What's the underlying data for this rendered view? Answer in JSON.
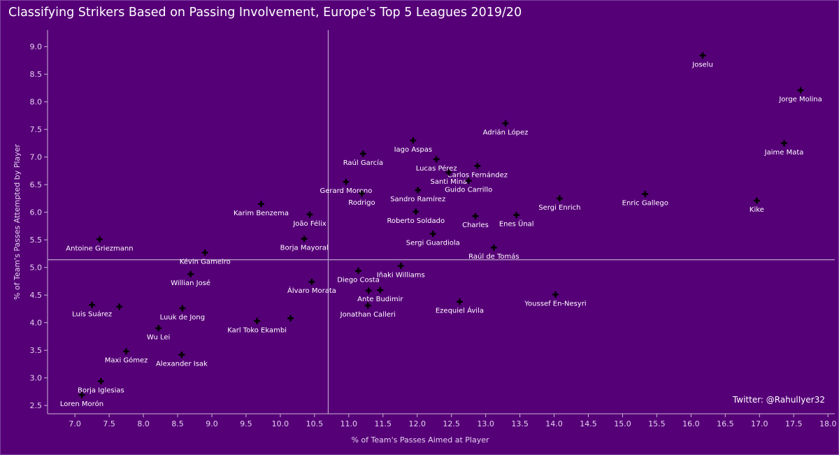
{
  "title": "Classifying Strikers Based on Passing Involvement, Europe's Top 5 Leagues 2019/20",
  "credit": "Twitter: @RahulIyer32",
  "colors": {
    "background": "#560078",
    "marker": "#000000",
    "reference_line": "#b9a2c8",
    "text": "#ffffff"
  },
  "chart_data": {
    "type": "scatter",
    "xlabel": "% of Team's Passes Aimed at Player",
    "ylabel": "% of Team's Passes Attempted by Player",
    "xlim": [
      6.6,
      18.1
    ],
    "ylim": [
      2.35,
      9.3
    ],
    "x_ticks": [
      "7.0",
      "7.5",
      "8.0",
      "8.5",
      "9.0",
      "9.5",
      "10.0",
      "10.5",
      "11.0",
      "11.5",
      "12.0",
      "12.5",
      "13.0",
      "13.5",
      "14.0",
      "14.5",
      "15.0",
      "15.5",
      "16.0",
      "16.5",
      "17.0",
      "17.5",
      "18.0"
    ],
    "y_ticks": [
      "2.5",
      "3.0",
      "3.5",
      "4.0",
      "4.5",
      "5.0",
      "5.5",
      "6.0",
      "6.5",
      "7.0",
      "7.5",
      "8.0",
      "8.5",
      "9.0"
    ],
    "grid": false,
    "reference_lines": {
      "x": 10.7,
      "y": 5.14
    },
    "marker": "plus",
    "points": [
      {
        "name": "Joselu",
        "x": 16.17,
        "y": 8.84
      },
      {
        "name": "Jorge Molina",
        "x": 17.6,
        "y": 8.21
      },
      {
        "name": "Adrián López",
        "x": 13.29,
        "y": 7.61
      },
      {
        "name": "Jaime Mata",
        "x": 17.36,
        "y": 7.25
      },
      {
        "name": "Iago Aspas",
        "x": 11.94,
        "y": 7.3
      },
      {
        "name": "Raúl García",
        "x": 11.21,
        "y": 7.06
      },
      {
        "name": "Lucas Pérez",
        "x": 12.28,
        "y": 6.96
      },
      {
        "name": "Carlos Fernández",
        "x": 12.88,
        "y": 6.84
      },
      {
        "name": "Santi Mina",
        "x": 12.46,
        "y": 6.72
      },
      {
        "name": "Gerard Moreno",
        "x": 10.96,
        "y": 6.55
      },
      {
        "name": "Guido Carrillo",
        "x": 12.75,
        "y": 6.57
      },
      {
        "name": "Rodrigo",
        "x": 11.19,
        "y": 6.34
      },
      {
        "name": "Sandro Ramírez",
        "x": 12.01,
        "y": 6.4
      },
      {
        "name": "Sergi Enrich",
        "x": 14.08,
        "y": 6.25
      },
      {
        "name": "Enric Gallego",
        "x": 15.33,
        "y": 6.33
      },
      {
        "name": "Kike",
        "x": 16.96,
        "y": 6.21
      },
      {
        "name": "Karim Benzema",
        "x": 9.72,
        "y": 6.15
      },
      {
        "name": "João Félix",
        "x": 10.43,
        "y": 5.96
      },
      {
        "name": "Roberto Soldado",
        "x": 11.98,
        "y": 6.01
      },
      {
        "name": "Charles",
        "x": 12.85,
        "y": 5.93
      },
      {
        "name": "Enes Ünal",
        "x": 13.45,
        "y": 5.95
      },
      {
        "name": "Borja Mayoral",
        "x": 10.35,
        "y": 5.52
      },
      {
        "name": "Sergi Guardiola",
        "x": 12.23,
        "y": 5.61
      },
      {
        "name": "Antoine Griezmann",
        "x": 7.36,
        "y": 5.51
      },
      {
        "name": "Raúl de Tomás",
        "x": 13.12,
        "y": 5.36
      },
      {
        "name": "Kévin Gameiro",
        "x": 8.9,
        "y": 5.27
      },
      {
        "name": "Iñaki Williams",
        "x": 11.76,
        "y": 5.03
      },
      {
        "name": "Diego Costa",
        "x": 11.14,
        "y": 4.94
      },
      {
        "name": "Willian José",
        "x": 8.69,
        "y": 4.88
      },
      {
        "name": "Álvaro Morata",
        "x": 10.46,
        "y": 4.74
      },
      {
        "name": "Ante Budimir",
        "x": 11.46,
        "y": 4.59
      },
      {
        "name": "Youssef En-Nesyri",
        "x": 14.02,
        "y": 4.51
      },
      {
        "name": "Ezequiel Ávila",
        "x": 12.62,
        "y": 4.38
      },
      {
        "name": "Luis Suárez",
        "x": 7.25,
        "y": 4.32
      },
      {
        "name": "Luuk de Jong",
        "x": 8.57,
        "y": 4.26
      },
      {
        "name": "Jonathan Calleri",
        "x": 11.28,
        "y": 4.31
      },
      {
        "name": "Karl Toko Ekambi",
        "x": 9.66,
        "y": 4.03
      },
      {
        "name": "Wu Lei",
        "x": 8.22,
        "y": 3.9
      },
      {
        "name": "Maxi Gómez",
        "x": 7.75,
        "y": 3.48
      },
      {
        "name": "Alexander Isak",
        "x": 8.56,
        "y": 3.42
      },
      {
        "name": "Borja Iglesias",
        "x": 7.38,
        "y": 2.94
      },
      {
        "name": "Loren Morón",
        "x": 7.1,
        "y": 2.69
      }
    ],
    "extra_markers": [
      {
        "x": 7.65,
        "y": 4.29
      },
      {
        "x": 10.15,
        "y": 4.08
      },
      {
        "x": 11.29,
        "y": 4.58
      }
    ]
  }
}
